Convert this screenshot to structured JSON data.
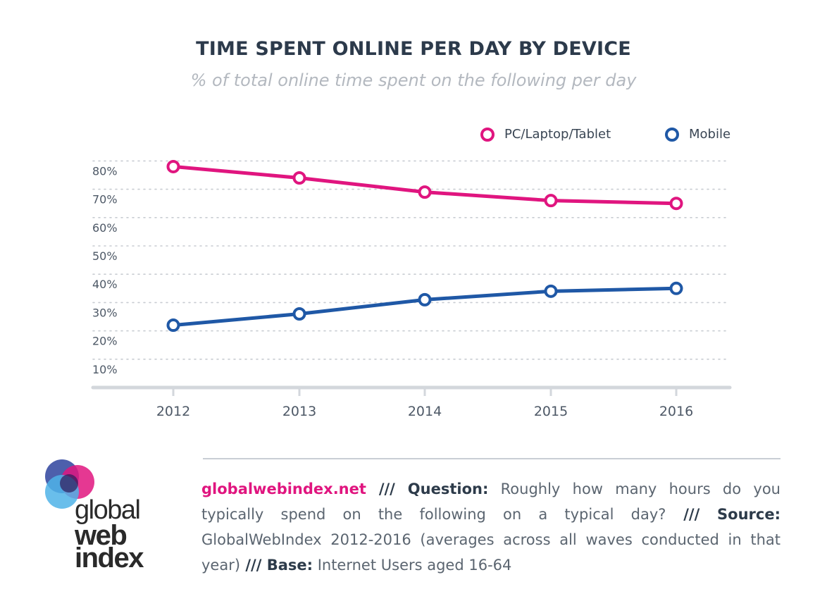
{
  "chart_data": {
    "type": "line",
    "title": "TIME SPENT ONLINE PER DAY BY DEVICE",
    "subtitle": "% of total online time spent on the following per day",
    "x": [
      "2012",
      "2013",
      "2014",
      "2015",
      "2016"
    ],
    "series": [
      {
        "name": "PC/Laptop/Tablet",
        "color": "#e0157f",
        "values": [
          78,
          74,
          69,
          66,
          65
        ]
      },
      {
        "name": "Mobile",
        "color": "#1f58a6",
        "values": [
          22,
          26,
          31,
          34,
          35
        ]
      }
    ],
    "yticks": [
      "10%",
      "20%",
      "30%",
      "40%",
      "50%",
      "60%",
      "70%",
      "80%"
    ],
    "ylim": [
      0,
      80
    ],
    "grid": true,
    "legend": "top-right"
  },
  "footer": {
    "site": "globalwebindex.net",
    "sep1": " /// ",
    "question_label": "Question:",
    "question_text": " Roughly how many hours do you typically spend on the following on a typical day?",
    "sep2": " /// ",
    "source_label": "Source:",
    "source_text": " GlobalWebIndex 2012-2016 (averages across all waves conducted in that year)",
    "sep3": " /// ",
    "base_label": "Base:",
    "base_text": " Internet Users aged 16-64"
  },
  "logo": {
    "line1": "global",
    "line2": "web",
    "line3": "index",
    "colors": [
      "#3a4ea3",
      "#e0157f",
      "#4fb3e8"
    ]
  }
}
